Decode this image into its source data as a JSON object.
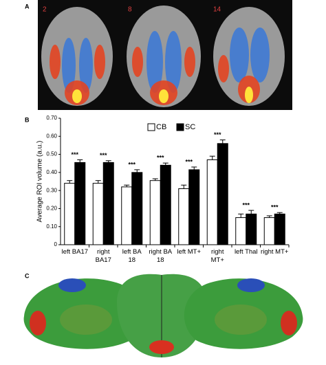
{
  "panel_labels": [
    "A",
    "B",
    "C"
  ],
  "slice_labels": [
    "2",
    "8",
    "14"
  ],
  "chart_data": {
    "type": "bar",
    "y_label": "Average ROI volume (a.u.)",
    "categories": [
      "left BA17",
      "right\nBA17",
      "left BA\n18",
      "right BA\n18",
      "left MT+",
      "right\nMT+",
      "left Thal",
      "right MT+"
    ],
    "series": [
      {
        "name": "CB",
        "color": "#ffffff",
        "values": [
          0.34,
          0.34,
          0.32,
          0.355,
          0.31,
          0.47,
          0.15,
          0.15
        ],
        "errors": [
          0.015,
          0.015,
          0.01,
          0.01,
          0.02,
          0.02,
          0.02,
          0.01
        ]
      },
      {
        "name": "SC",
        "color": "#000000",
        "values": [
          0.455,
          0.455,
          0.4,
          0.44,
          0.415,
          0.56,
          0.17,
          0.17
        ],
        "errors": [
          0.015,
          0.01,
          0.015,
          0.012,
          0.015,
          0.02,
          0.02,
          0.008
        ]
      }
    ],
    "annotations": [
      "***",
      "***",
      "***",
      "***",
      "***",
      "***",
      "***",
      "***"
    ],
    "ylim": [
      0,
      0.7
    ],
    "yticks": [
      0,
      {
        "value": 0.1,
        "label": "0.10"
      },
      {
        "value": 0.2,
        "label": "0.20"
      },
      {
        "value": 0.3,
        "label": "0.30"
      },
      {
        "value": 0.4,
        "label": "0.40"
      },
      {
        "value": 0.5,
        "label": "0.50"
      },
      {
        "value": 0.6,
        "label": "0.60"
      },
      {
        "value": 0.7,
        "label": "0.70"
      }
    ],
    "legend": "top"
  }
}
